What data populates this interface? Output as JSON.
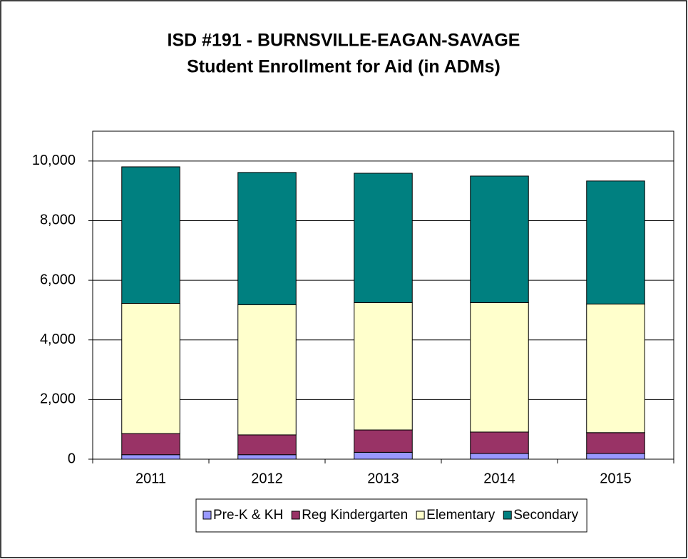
{
  "chart_data": {
    "type": "stacked_bar",
    "title": "ISD #191 - BURNSVILLE-EAGAN-SAVAGE",
    "subtitle": "Student Enrollment for Aid (in ADMs)",
    "categories": [
      "2011",
      "2012",
      "2013",
      "2014",
      "2015"
    ],
    "series": [
      {
        "name": "Pre-K & KH",
        "color": "#9999ff",
        "values": [
          150,
          150,
          230,
          190,
          190
        ]
      },
      {
        "name": "Reg Kindergarten",
        "color": "#993366",
        "values": [
          710,
          665,
          750,
          720,
          700
        ]
      },
      {
        "name": "Elementary",
        "color": "#ffffcc",
        "values": [
          4365,
          4365,
          4270,
          4340,
          4315
        ]
      },
      {
        "name": "Secondary",
        "color": "#008080",
        "values": [
          4580,
          4436,
          4340,
          4245,
          4125
        ]
      }
    ],
    "ylim": [
      0,
      11000
    ],
    "yticks": [
      0,
      {
        "value": 2000,
        "label": "2,000"
      },
      {
        "value": 4000,
        "label": "4,000"
      },
      {
        "value": 6000,
        "label": "6,000"
      },
      {
        "value": 8000,
        "label": "8,000"
      },
      {
        "value": 10000,
        "label": "10,000"
      }
    ],
    "grid": true,
    "legend": "bottom"
  }
}
